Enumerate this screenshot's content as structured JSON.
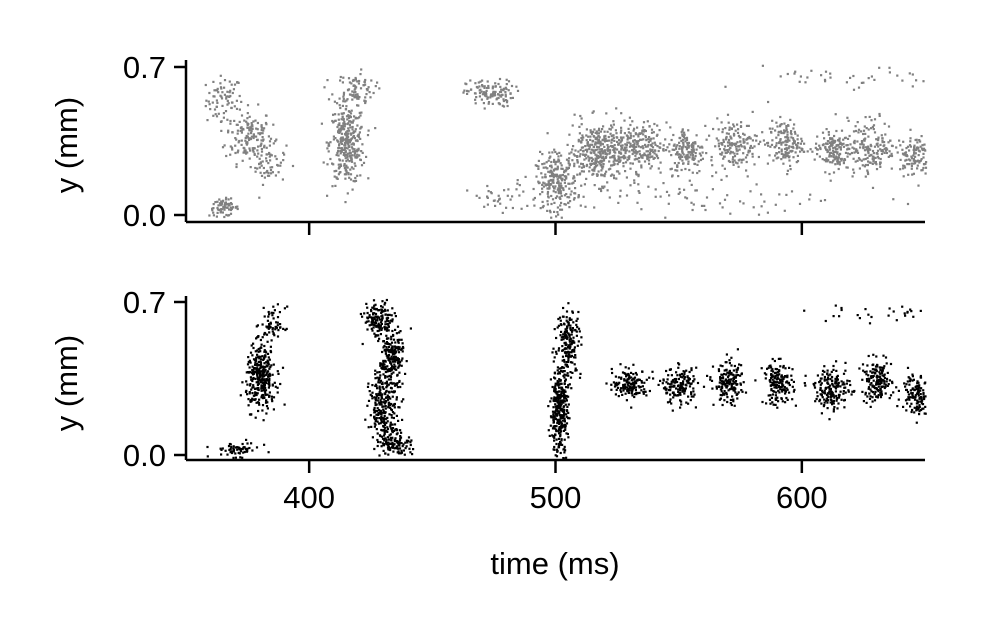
{
  "chart_data": [
    {
      "type": "scatter",
      "panel": "top",
      "title": "",
      "xlabel": "",
      "ylabel": "y (mm)",
      "xlim": [
        350,
        650
      ],
      "ylim": [
        0.0,
        0.7
      ],
      "xticks": [
        400,
        500,
        600
      ],
      "xtick_labels": [
        "",
        "",
        ""
      ],
      "yticks": [
        0.0,
        0.7
      ],
      "ytick_labels": [
        "0.0",
        "0.7"
      ],
      "color": "#808080",
      "grid": false,
      "legend": "none",
      "clusters": [
        {
          "t": 365,
          "y": 0.55,
          "dt": 6,
          "dy": 0.07,
          "n": 70
        },
        {
          "t": 375,
          "y": 0.38,
          "dt": 8,
          "dy": 0.08,
          "n": 150
        },
        {
          "t": 383,
          "y": 0.25,
          "dt": 6,
          "dy": 0.06,
          "n": 60
        },
        {
          "t": 365,
          "y": 0.04,
          "dt": 5,
          "dy": 0.025,
          "n": 70
        },
        {
          "t": 415,
          "y": 0.34,
          "dt": 6,
          "dy": 0.12,
          "n": 330
        },
        {
          "t": 418,
          "y": 0.6,
          "dt": 7,
          "dy": 0.05,
          "n": 80
        },
        {
          "t": 473,
          "y": 0.58,
          "dt": 8,
          "dy": 0.04,
          "n": 120
        },
        {
          "t": 478,
          "y": 0.08,
          "dt": 12,
          "dy": 0.05,
          "n": 30
        },
        {
          "t": 500,
          "y": 0.16,
          "dt": 7,
          "dy": 0.08,
          "n": 220
        },
        {
          "t": 518,
          "y": 0.3,
          "dt": 12,
          "dy": 0.09,
          "n": 420
        },
        {
          "t": 535,
          "y": 0.33,
          "dt": 8,
          "dy": 0.07,
          "n": 160
        },
        {
          "t": 553,
          "y": 0.31,
          "dt": 6,
          "dy": 0.07,
          "n": 150
        },
        {
          "t": 572,
          "y": 0.34,
          "dt": 8,
          "dy": 0.07,
          "n": 170
        },
        {
          "t": 593,
          "y": 0.34,
          "dt": 6,
          "dy": 0.07,
          "n": 150
        },
        {
          "t": 612,
          "y": 0.31,
          "dt": 6,
          "dy": 0.06,
          "n": 150
        },
        {
          "t": 628,
          "y": 0.33,
          "dt": 8,
          "dy": 0.08,
          "n": 170
        },
        {
          "t": 645,
          "y": 0.29,
          "dt": 5,
          "dy": 0.06,
          "n": 110
        },
        {
          "t": 550,
          "y": 0.09,
          "dt": 60,
          "dy": 0.07,
          "n": 90
        },
        {
          "t": 620,
          "y": 0.64,
          "dt": 30,
          "dy": 0.04,
          "n": 40
        }
      ]
    },
    {
      "type": "scatter",
      "panel": "bottom",
      "title": "",
      "xlabel": "time (ms)",
      "ylabel": "y (mm)",
      "xlim": [
        350,
        650
      ],
      "ylim": [
        0.0,
        0.7
      ],
      "xticks": [
        400,
        500,
        600
      ],
      "xtick_labels": [
        "400",
        "500",
        "600"
      ],
      "yticks": [
        0.0,
        0.7
      ],
      "ytick_labels": [
        "0.0",
        "0.7"
      ],
      "color": "#000000",
      "grid": false,
      "legend": "none",
      "clusters": [
        {
          "t": 380,
          "y": 0.36,
          "dt": 5,
          "dy": 0.09,
          "n": 320
        },
        {
          "t": 385,
          "y": 0.6,
          "dt": 4,
          "dy": 0.05,
          "n": 60
        },
        {
          "t": 370,
          "y": 0.03,
          "dt": 8,
          "dy": 0.02,
          "n": 60
        },
        {
          "t": 428,
          "y": 0.62,
          "dt": 5,
          "dy": 0.05,
          "n": 150
        },
        {
          "t": 433,
          "y": 0.45,
          "dt": 4,
          "dy": 0.08,
          "n": 200
        },
        {
          "t": 430,
          "y": 0.22,
          "dt": 5,
          "dy": 0.1,
          "n": 260
        },
        {
          "t": 435,
          "y": 0.06,
          "dt": 5,
          "dy": 0.04,
          "n": 100
        },
        {
          "t": 501,
          "y": 0.2,
          "dt": 3,
          "dy": 0.12,
          "n": 320
        },
        {
          "t": 505,
          "y": 0.52,
          "dt": 4,
          "dy": 0.1,
          "n": 180
        },
        {
          "t": 530,
          "y": 0.33,
          "dt": 6,
          "dy": 0.04,
          "n": 150
        },
        {
          "t": 550,
          "y": 0.32,
          "dt": 6,
          "dy": 0.05,
          "n": 160
        },
        {
          "t": 570,
          "y": 0.33,
          "dt": 5,
          "dy": 0.06,
          "n": 160
        },
        {
          "t": 590,
          "y": 0.33,
          "dt": 5,
          "dy": 0.06,
          "n": 160
        },
        {
          "t": 612,
          "y": 0.31,
          "dt": 6,
          "dy": 0.06,
          "n": 170
        },
        {
          "t": 630,
          "y": 0.34,
          "dt": 5,
          "dy": 0.06,
          "n": 160
        },
        {
          "t": 646,
          "y": 0.29,
          "dt": 5,
          "dy": 0.06,
          "n": 130
        },
        {
          "t": 630,
          "y": 0.65,
          "dt": 25,
          "dy": 0.03,
          "n": 30
        }
      ]
    }
  ]
}
